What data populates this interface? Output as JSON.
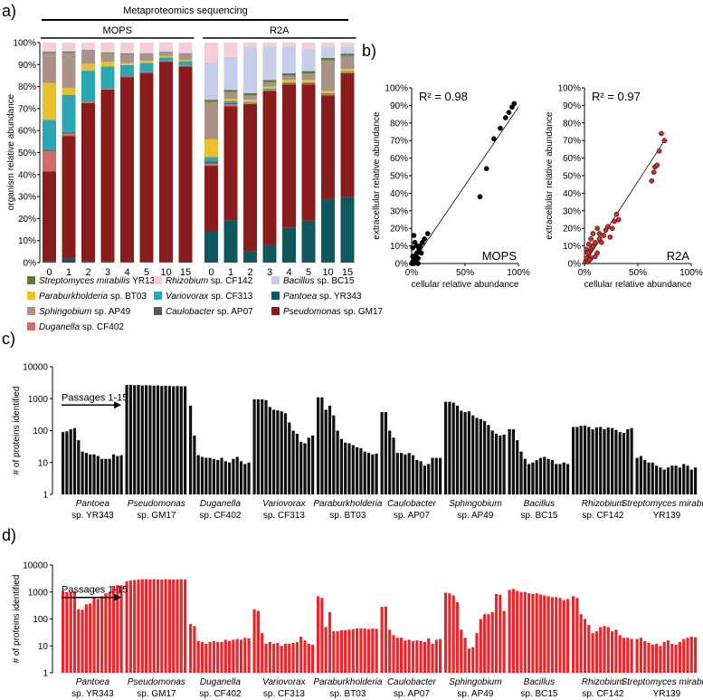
{
  "panel_labels": {
    "a": "a)",
    "b": "b)",
    "c": "c)",
    "d": "d)"
  },
  "chart_data": [
    {
      "id": "a",
      "type": "stacked-bar",
      "title": "Metaproteomics sequencing",
      "ylabel": "organism relative abundance",
      "ylim": [
        0,
        100
      ],
      "yticks": [
        "0%",
        "10%",
        "20%",
        "30%",
        "40%",
        "50%",
        "60%",
        "70%",
        "80%",
        "90%",
        "100%"
      ],
      "categories": [
        "0",
        "1",
        "2",
        "3",
        "4",
        "5",
        "10",
        "15"
      ],
      "stack_order": [
        "pantoea",
        "pseudomonas",
        "duganella",
        "caulobacter",
        "variovorax",
        "paraburkholderia",
        "sphingobium",
        "streptomyces",
        "bacillus",
        "rhizobium"
      ],
      "groups": [
        {
          "name": "MOPS",
          "values": {
            "pantoea": [
              0.5,
              2,
              0.5,
              0.5,
              0.3,
              0.3,
              0.3,
              0.2
            ],
            "pseudomonas": [
              39,
              55,
              72,
              78,
              84,
              86,
              91,
              89
            ],
            "duganella": [
              9,
              1,
              0.5,
              0.3,
              0.3,
              0.2,
              0.2,
              0.2
            ],
            "caulobacter": [
              0.5,
              0.5,
              0.2,
              0.2,
              0.2,
              0.2,
              0.2,
              0.2
            ],
            "variovorax": [
              13,
              17,
              14,
              10,
              5,
              4,
              1.5,
              2
            ],
            "paraburkholderia": [
              16,
              3,
              3,
              2,
              1,
              1,
              0.7,
              0.6
            ],
            "sphingobium": [
              13,
              16,
              6,
              4,
              4,
              3,
              1.5,
              2.5
            ],
            "streptomyces": [
              0.5,
              0.5,
              0.3,
              0.3,
              0.3,
              0.3,
              0.3,
              0.3
            ],
            "bacillus": [
              0.5,
              0.5,
              0.5,
              0.5,
              0.5,
              0.5,
              0.5,
              0.5
            ],
            "rhizobium": [
              3.5,
              3.5,
              3,
              4,
              4.4,
              4.5,
              3.8,
              4.5
            ]
          }
        },
        {
          "name": "R2A",
          "values": {
            "pantoea": [
              14,
              19,
              5,
              8,
              16,
              19,
              29,
              30
            ],
            "pseudomonas": [
              30,
              52,
              67,
              70,
              65,
              62,
              47,
              56
            ],
            "duganella": [
              1,
              1,
              0.3,
              0.3,
              0.3,
              0.3,
              0.3,
              0.3
            ],
            "caulobacter": [
              1,
              0.5,
              0.2,
              0.2,
              0.2,
              0.2,
              0.2,
              0.2
            ],
            "variovorax": [
              2,
              1,
              0.5,
              0.5,
              0.5,
              0.5,
              0.5,
              0.5
            ],
            "paraburkholderia": [
              8,
              1,
              1,
              1,
              1,
              1,
              1,
              1
            ],
            "sphingobium": [
              17,
              3,
              2,
              2,
              2,
              3,
              14,
              6
            ],
            "streptomyces": [
              1,
              1,
              1,
              1,
              1,
              1,
              1,
              1
            ],
            "bacillus": [
              17,
              15,
              21,
              15,
              12,
              10,
              5,
              3
            ],
            "rhizobium": [
              9,
              6.5,
              2,
              2,
              2,
              3,
              2,
              2
            ]
          }
        }
      ],
      "legend": [
        {
          "key": "streptomyces",
          "genus": "Streptomyces mirabilis",
          "strain": "YR139",
          "color": "#5a7a32"
        },
        {
          "key": "rhizobium",
          "genus": "Rhizobium",
          "strain": "sp. CF142",
          "color": "#f6cdd5"
        },
        {
          "key": "bacillus",
          "genus": "Bacillus",
          "strain": "sp. BC15",
          "color": "#c6cde8"
        },
        {
          "key": "paraburkholderia",
          "genus": "Paraburkholderia",
          "strain": "sp. BT03",
          "color": "#eac02a"
        },
        {
          "key": "variovorax",
          "genus": "Variovorax",
          "strain": "sp. CF313",
          "color": "#2aa7b2"
        },
        {
          "key": "pantoea",
          "genus": "Pantoea",
          "strain": "sp. YR343",
          "color": "#0f585d"
        },
        {
          "key": "sphingobium",
          "genus": "Sphingobium",
          "strain": "sp. AP49",
          "color": "#a99288"
        },
        {
          "key": "caulobacter",
          "genus": "Caulobacter",
          "strain": "sp. AP07",
          "color": "#595959"
        },
        {
          "key": "pseudomonas",
          "genus": "Pseudomonas",
          "strain": "sp. GM17",
          "color": "#8b1c1c"
        },
        {
          "key": "duganella",
          "genus": "Duganella",
          "strain": "sp. CF402",
          "color": "#d36b6b"
        }
      ]
    },
    {
      "id": "b-mops",
      "type": "scatter",
      "label": "MOPS",
      "label_color": "#000000",
      "point_color": "#000000",
      "r2": "R² = 0.98",
      "xlabel": "cellular relative abundance",
      "ylabel": "extracellular relative abundance",
      "xlim": [
        0,
        100
      ],
      "ylim": [
        0,
        100
      ],
      "xticks": [
        "0%",
        "50%",
        "100%"
      ],
      "yticks": [
        "0%",
        "10%",
        "20%",
        "30%",
        "40%",
        "50%",
        "60%",
        "70%",
        "80%",
        "90%",
        "100%"
      ],
      "fit_line": [
        [
          0,
          0
        ],
        [
          100,
          89
        ]
      ],
      "points": [
        [
          0,
          0
        ],
        [
          1,
          1
        ],
        [
          2,
          0
        ],
        [
          2,
          3
        ],
        [
          3,
          2
        ],
        [
          4,
          5
        ],
        [
          5,
          6
        ],
        [
          6,
          3
        ],
        [
          7,
          8
        ],
        [
          8,
          10
        ],
        [
          9,
          6
        ],
        [
          10,
          12
        ],
        [
          12,
          14
        ],
        [
          15,
          17
        ],
        [
          1,
          9
        ],
        [
          3,
          12
        ],
        [
          2,
          16
        ],
        [
          4,
          2
        ],
        [
          6,
          0
        ],
        [
          1,
          4
        ],
        [
          5,
          10
        ],
        [
          64,
          38
        ],
        [
          70,
          54
        ],
        [
          77,
          71
        ],
        [
          83,
          77
        ],
        [
          88,
          83
        ],
        [
          91,
          86
        ],
        [
          94,
          89
        ],
        [
          96,
          91
        ]
      ]
    },
    {
      "id": "b-r2a",
      "type": "scatter",
      "label": "R2A",
      "label_color": "#e02020",
      "point_color": "#c8302a",
      "r2": "R² = 0.97",
      "xlabel": "cellular relative abundance",
      "ylabel": "extracellular relative abundance",
      "xlim": [
        0,
        100
      ],
      "ylim": [
        0,
        100
      ],
      "xticks": [
        "0%",
        "50%",
        "100%"
      ],
      "yticks": [
        "0%",
        "10%",
        "20%",
        "30%",
        "40%",
        "50%",
        "60%",
        "70%",
        "80%",
        "90%",
        "100%"
      ],
      "fit_line": [
        [
          0,
          0
        ],
        [
          75,
          70
        ]
      ],
      "points": [
        [
          1,
          1
        ],
        [
          2,
          3
        ],
        [
          3,
          1
        ],
        [
          4,
          5
        ],
        [
          5,
          7
        ],
        [
          6,
          3
        ],
        [
          7,
          9
        ],
        [
          8,
          10
        ],
        [
          10,
          12
        ],
        [
          12,
          6
        ],
        [
          14,
          14
        ],
        [
          16,
          12
        ],
        [
          18,
          16
        ],
        [
          20,
          19
        ],
        [
          22,
          21
        ],
        [
          24,
          15
        ],
        [
          26,
          20
        ],
        [
          28,
          24
        ],
        [
          30,
          28
        ],
        [
          32,
          25
        ],
        [
          2,
          8
        ],
        [
          4,
          11
        ],
        [
          6,
          14
        ],
        [
          8,
          17
        ],
        [
          10,
          4
        ],
        [
          12,
          20
        ],
        [
          14,
          17
        ],
        [
          3,
          6
        ],
        [
          5,
          2
        ],
        [
          63,
          47
        ],
        [
          65,
          52
        ],
        [
          66,
          55
        ],
        [
          68,
          56
        ],
        [
          70,
          64
        ],
        [
          72,
          74
        ],
        [
          75,
          70
        ]
      ]
    },
    {
      "id": "c",
      "type": "bar",
      "scale": "log",
      "color": "#111111",
      "ylabel": "# of proteins identified",
      "yticks": [
        "1",
        "10",
        "100",
        "1000",
        "10000"
      ],
      "annotation": "Passages 1-15",
      "groups": [
        {
          "genus": "Pantoea",
          "strain": "sp. YR343",
          "values": [
            90,
            95,
            110,
            120,
            50,
            22,
            20,
            18,
            18,
            16,
            13,
            13,
            13,
            18,
            16,
            17
          ]
        },
        {
          "genus": "Pseudomonas",
          "strain": "sp. GM17",
          "values": [
            2700,
            2700,
            2650,
            2700,
            2600,
            2650,
            2600,
            2550,
            2600,
            2500,
            2550,
            2500,
            2450,
            2500,
            2450,
            2450
          ]
        },
        {
          "genus": "Duganella",
          "strain": "sp. CF402",
          "values": [
            600,
            70,
            17,
            15,
            14,
            14,
            13,
            12,
            14,
            11,
            10,
            13,
            15,
            11,
            9,
            10
          ]
        },
        {
          "genus": "Variovorax",
          "strain": "sp. CF313",
          "values": [
            950,
            950,
            950,
            900,
            550,
            450,
            430,
            400,
            350,
            180,
            100,
            80,
            45,
            40,
            60,
            70
          ]
        },
        {
          "genus": "Paraburkholderia",
          "strain": "sp. BT03",
          "values": [
            1100,
            1100,
            450,
            600,
            300,
            100,
            55,
            42,
            40,
            35,
            30,
            28,
            22,
            20,
            18,
            19
          ]
        },
        {
          "genus": "Caulobacter",
          "strain": "sp. AP07",
          "values": [
            380,
            380,
            100,
            60,
            20,
            20,
            18,
            20,
            17,
            12,
            11,
            8,
            9,
            14,
            14,
            14
          ]
        },
        {
          "genus": "Sphingobium",
          "strain": "sp. AP49",
          "values": [
            800,
            800,
            750,
            600,
            420,
            380,
            400,
            300,
            250,
            230,
            200,
            150,
            100,
            80,
            70,
            75
          ]
        },
        {
          "genus": "Bacillus",
          "strain": "sp. BC15",
          "values": [
            110,
            110,
            50,
            22,
            13,
            9,
            10,
            12,
            14,
            15,
            13,
            12,
            9,
            9,
            10,
            9
          ]
        },
        {
          "genus": "Rhizobium",
          "strain": "sp. CF142",
          "values": [
            130,
            130,
            140,
            145,
            130,
            110,
            125,
            130,
            110,
            125,
            120,
            105,
            90,
            85,
            110,
            120
          ]
        },
        {
          "genus": "Streptomyces mirabilis",
          "strain": "YR139",
          "values": [
            14,
            16,
            12,
            10,
            10,
            8,
            7,
            6,
            7,
            8,
            8,
            7,
            9,
            8,
            6,
            7
          ]
        }
      ]
    },
    {
      "id": "d",
      "type": "bar",
      "scale": "log",
      "color": "#e8262b",
      "ylabel": "# of proteins identified",
      "yticks": [
        "1",
        "10",
        "100",
        "1000",
        "10000"
      ],
      "annotation": "Passages 1-15",
      "groups": [
        {
          "genus": "Pantoea",
          "strain": "sp. YR343",
          "values": [
            1050,
            1000,
            1000,
            1050,
            230,
            220,
            350,
            380,
            600,
            550,
            700,
            900,
            1000,
            1700,
            1800,
            1750
          ]
        },
        {
          "genus": "Pseudomonas",
          "strain": "sp. GM17",
          "values": [
            2500,
            2700,
            2800,
            2900,
            3000,
            3000,
            2950,
            3000,
            2950,
            2900,
            3000,
            2950,
            2900,
            2950,
            3000,
            2950
          ]
        },
        {
          "genus": "Duganella",
          "strain": "sp. CF402",
          "values": [
            65,
            55,
            15,
            14,
            12,
            14,
            15,
            14,
            14,
            17,
            15,
            17,
            18,
            17,
            20,
            19
          ]
        },
        {
          "genus": "Variovorax",
          "strain": "sp. CF313",
          "values": [
            230,
            200,
            30,
            12,
            14,
            12,
            13,
            10,
            12,
            12,
            13,
            14,
            22,
            16,
            12,
            11
          ]
        },
        {
          "genus": "Paraburkholderia",
          "strain": "sp. BT03",
          "values": [
            700,
            600,
            50,
            180,
            35,
            35,
            38,
            38,
            40,
            42,
            45,
            45,
            44,
            42,
            44,
            43
          ]
        },
        {
          "genus": "Caulobacter",
          "strain": "sp. AP07",
          "values": [
            280,
            290,
            40,
            25,
            20,
            20,
            16,
            17,
            15,
            16,
            15,
            14,
            19,
            12,
            17,
            18
          ]
        },
        {
          "genus": "Sphingobium",
          "strain": "sp. AP49",
          "values": [
            950,
            900,
            750,
            420,
            40,
            20,
            8,
            9,
            30,
            100,
            150,
            150,
            180,
            850,
            800,
            200
          ]
        },
        {
          "genus": "Bacillus",
          "strain": "sp. BC15",
          "values": [
            1200,
            1300,
            1100,
            1000,
            1000,
            900,
            850,
            900,
            800,
            750,
            700,
            650,
            650,
            600,
            500,
            550
          ]
        },
        {
          "genus": "Rhizobium",
          "strain": "sp. CF142",
          "values": [
            700,
            600,
            150,
            100,
            60,
            30,
            35,
            50,
            55,
            50,
            35,
            40,
            25,
            20,
            20,
            18
          ]
        },
        {
          "genus": "Streptomyces mirabilis",
          "strain": "YR139",
          "values": [
            18,
            20,
            15,
            13,
            11,
            12,
            10,
            14,
            16,
            12,
            11,
            14,
            18,
            20,
            22,
            21
          ]
        }
      ]
    }
  ]
}
